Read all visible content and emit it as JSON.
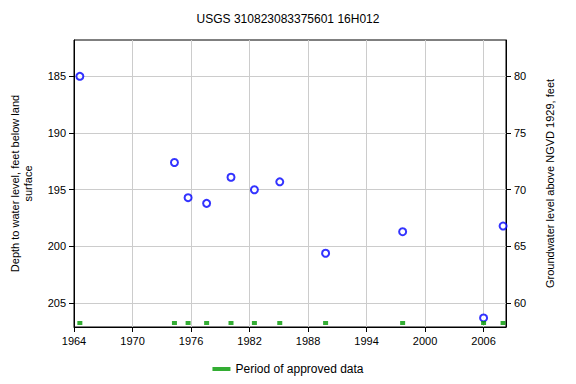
{
  "chart_data": {
    "type": "scatter",
    "title": "USGS 310823083375601 16H012",
    "y_label": "Depth to water level, feet below land\nsurface",
    "y2_label": "Groundwater level above NGVD 1929, feet",
    "x": [
      1964.6,
      1974.3,
      1975.7,
      1977.6,
      1980.1,
      1982.5,
      1985.1,
      1989.8,
      1997.7,
      2006.0,
      2008.0
    ],
    "values": [
      185.0,
      192.6,
      195.7,
      196.2,
      193.9,
      195.0,
      194.3,
      200.6,
      198.7,
      206.3,
      198.2
    ],
    "color": "#0000ff",
    "marker": "open circle",
    "approved": {
      "name": "Period of approved data",
      "color": "#009900",
      "x": [
        1964.6,
        1974.3,
        1975.7,
        1977.6,
        1980.1,
        1982.5,
        1985.1,
        1989.8,
        1997.7,
        2006.0,
        2008.0
      ]
    },
    "xlim": [
      1964,
      2008.3
    ],
    "xticks": [
      1964,
      1970,
      1976,
      1982,
      1988,
      1994,
      2000,
      2006
    ],
    "ylim": [
      181.8,
      207.1
    ],
    "yticks": [
      185,
      190,
      195,
      200,
      205
    ],
    "y2lim": [
      57.9,
      83.2
    ],
    "y2ticks": [
      60,
      65,
      70,
      75,
      80
    ],
    "grid": true,
    "legend": "bottom"
  }
}
